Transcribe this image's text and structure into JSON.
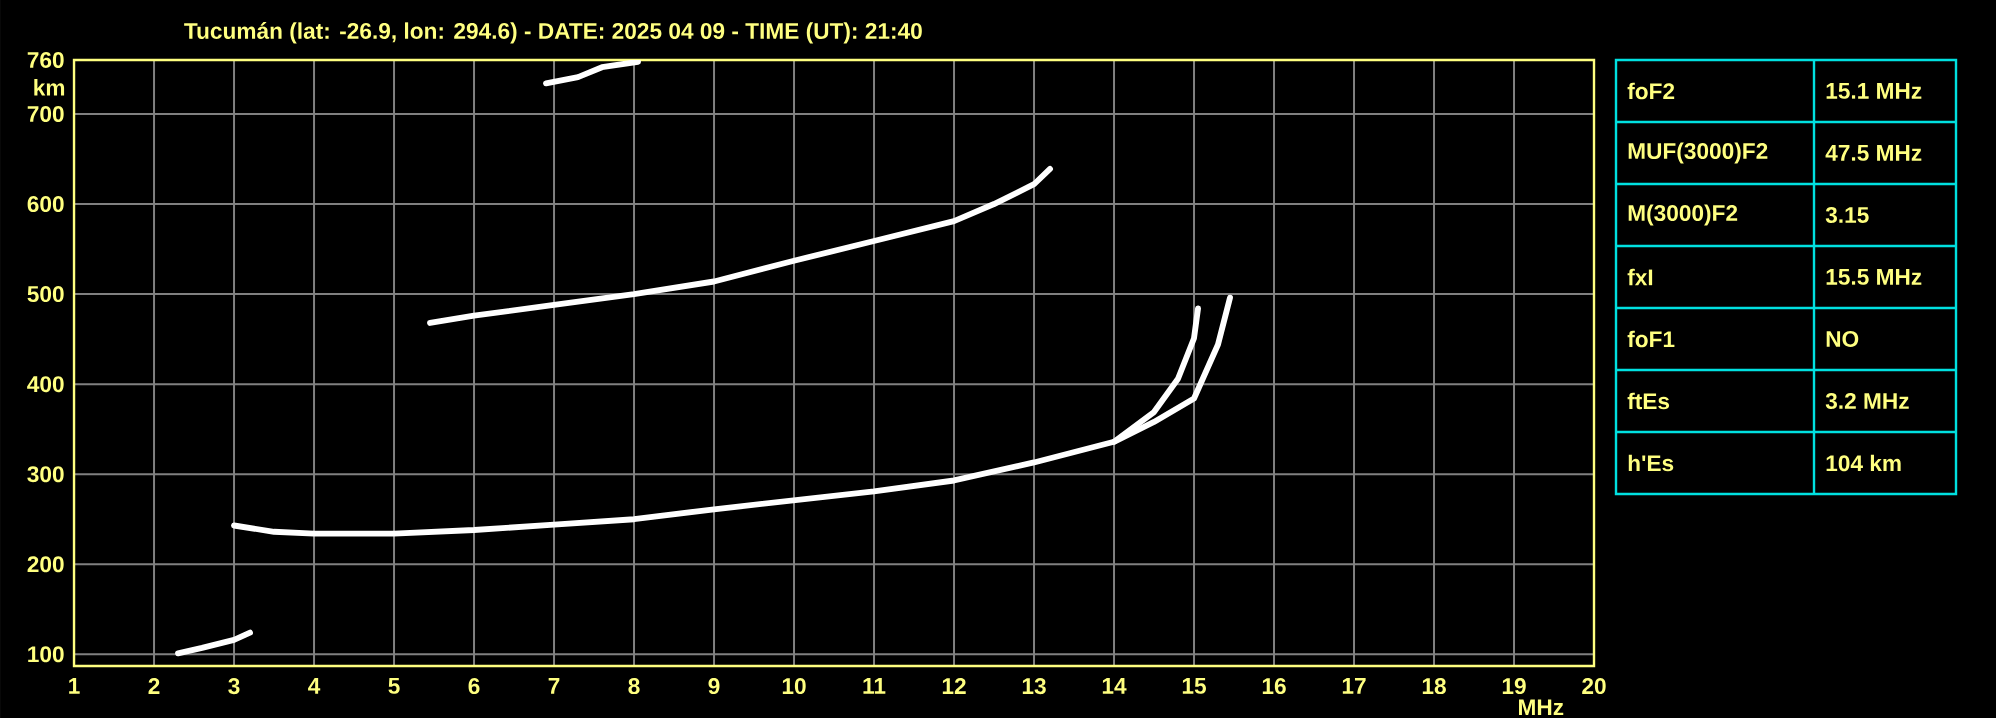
{
  "chart_data": [
    {
      "type": "line",
      "title": "Tucumán (lat: -26.9, lon: 294.6) - DATE: 2025 04 09 - TIME (UT): 21:40",
      "xlabel": "MHz",
      "ylabel": "km",
      "xlim": [
        1,
        20
      ],
      "ylim": [
        87,
        760
      ],
      "xticks": [
        1,
        2,
        3,
        4,
        5,
        6,
        7,
        8,
        9,
        10,
        11,
        12,
        13,
        14,
        15,
        16,
        17,
        18,
        19,
        20
      ],
      "yticks": [
        100,
        200,
        300,
        400,
        500,
        600,
        700,
        760
      ],
      "grid": true,
      "series": [
        {
          "color": "#ffffff",
          "x": [
            3.0,
            3.5,
            4,
            5,
            6,
            7,
            8,
            9,
            10,
            11,
            12,
            13,
            14,
            14.5,
            14.8,
            15.0,
            15.05
          ],
          "values": [
            243,
            236,
            234,
            234,
            238,
            244,
            250,
            261,
            271,
            281,
            293,
            313,
            336,
            369,
            406,
            451,
            484
          ]
        },
        {
          "color": "#ffffff",
          "x": [
            14,
            14.5,
            15.0,
            15.3,
            15.45
          ],
          "values": [
            336,
            358,
            384,
            444,
            496
          ]
        },
        {
          "color": "#ffffff",
          "x": [
            5.45,
            6,
            7,
            8,
            9,
            10,
            11,
            12,
            12.5,
            13,
            13.2
          ],
          "values": [
            468,
            476,
            488,
            500,
            514,
            537,
            559,
            581,
            600,
            622,
            639
          ]
        },
        {
          "color": "#ffffff",
          "x": [
            6.9,
            7.3,
            7.6,
            8.05
          ],
          "values": [
            734,
            741,
            752,
            758
          ]
        },
        {
          "color": "#ffffff",
          "x": [
            2.3,
            2.6,
            3.0,
            3.2
          ],
          "values": [
            101,
            107,
            116,
            124
          ]
        }
      ]
    },
    {
      "type": "other",
      "annotations": [
        "foF2",
        "15.1 MHz",
        "MUF(3000)F2",
        "47.5 MHz",
        "M(3000)F2",
        "3.15",
        "fxI",
        "15.5 MHz",
        "foF1",
        "NO",
        "ftEs",
        "3.2 MHz",
        "h'Es",
        "104 km"
      ]
    }
  ]
}
